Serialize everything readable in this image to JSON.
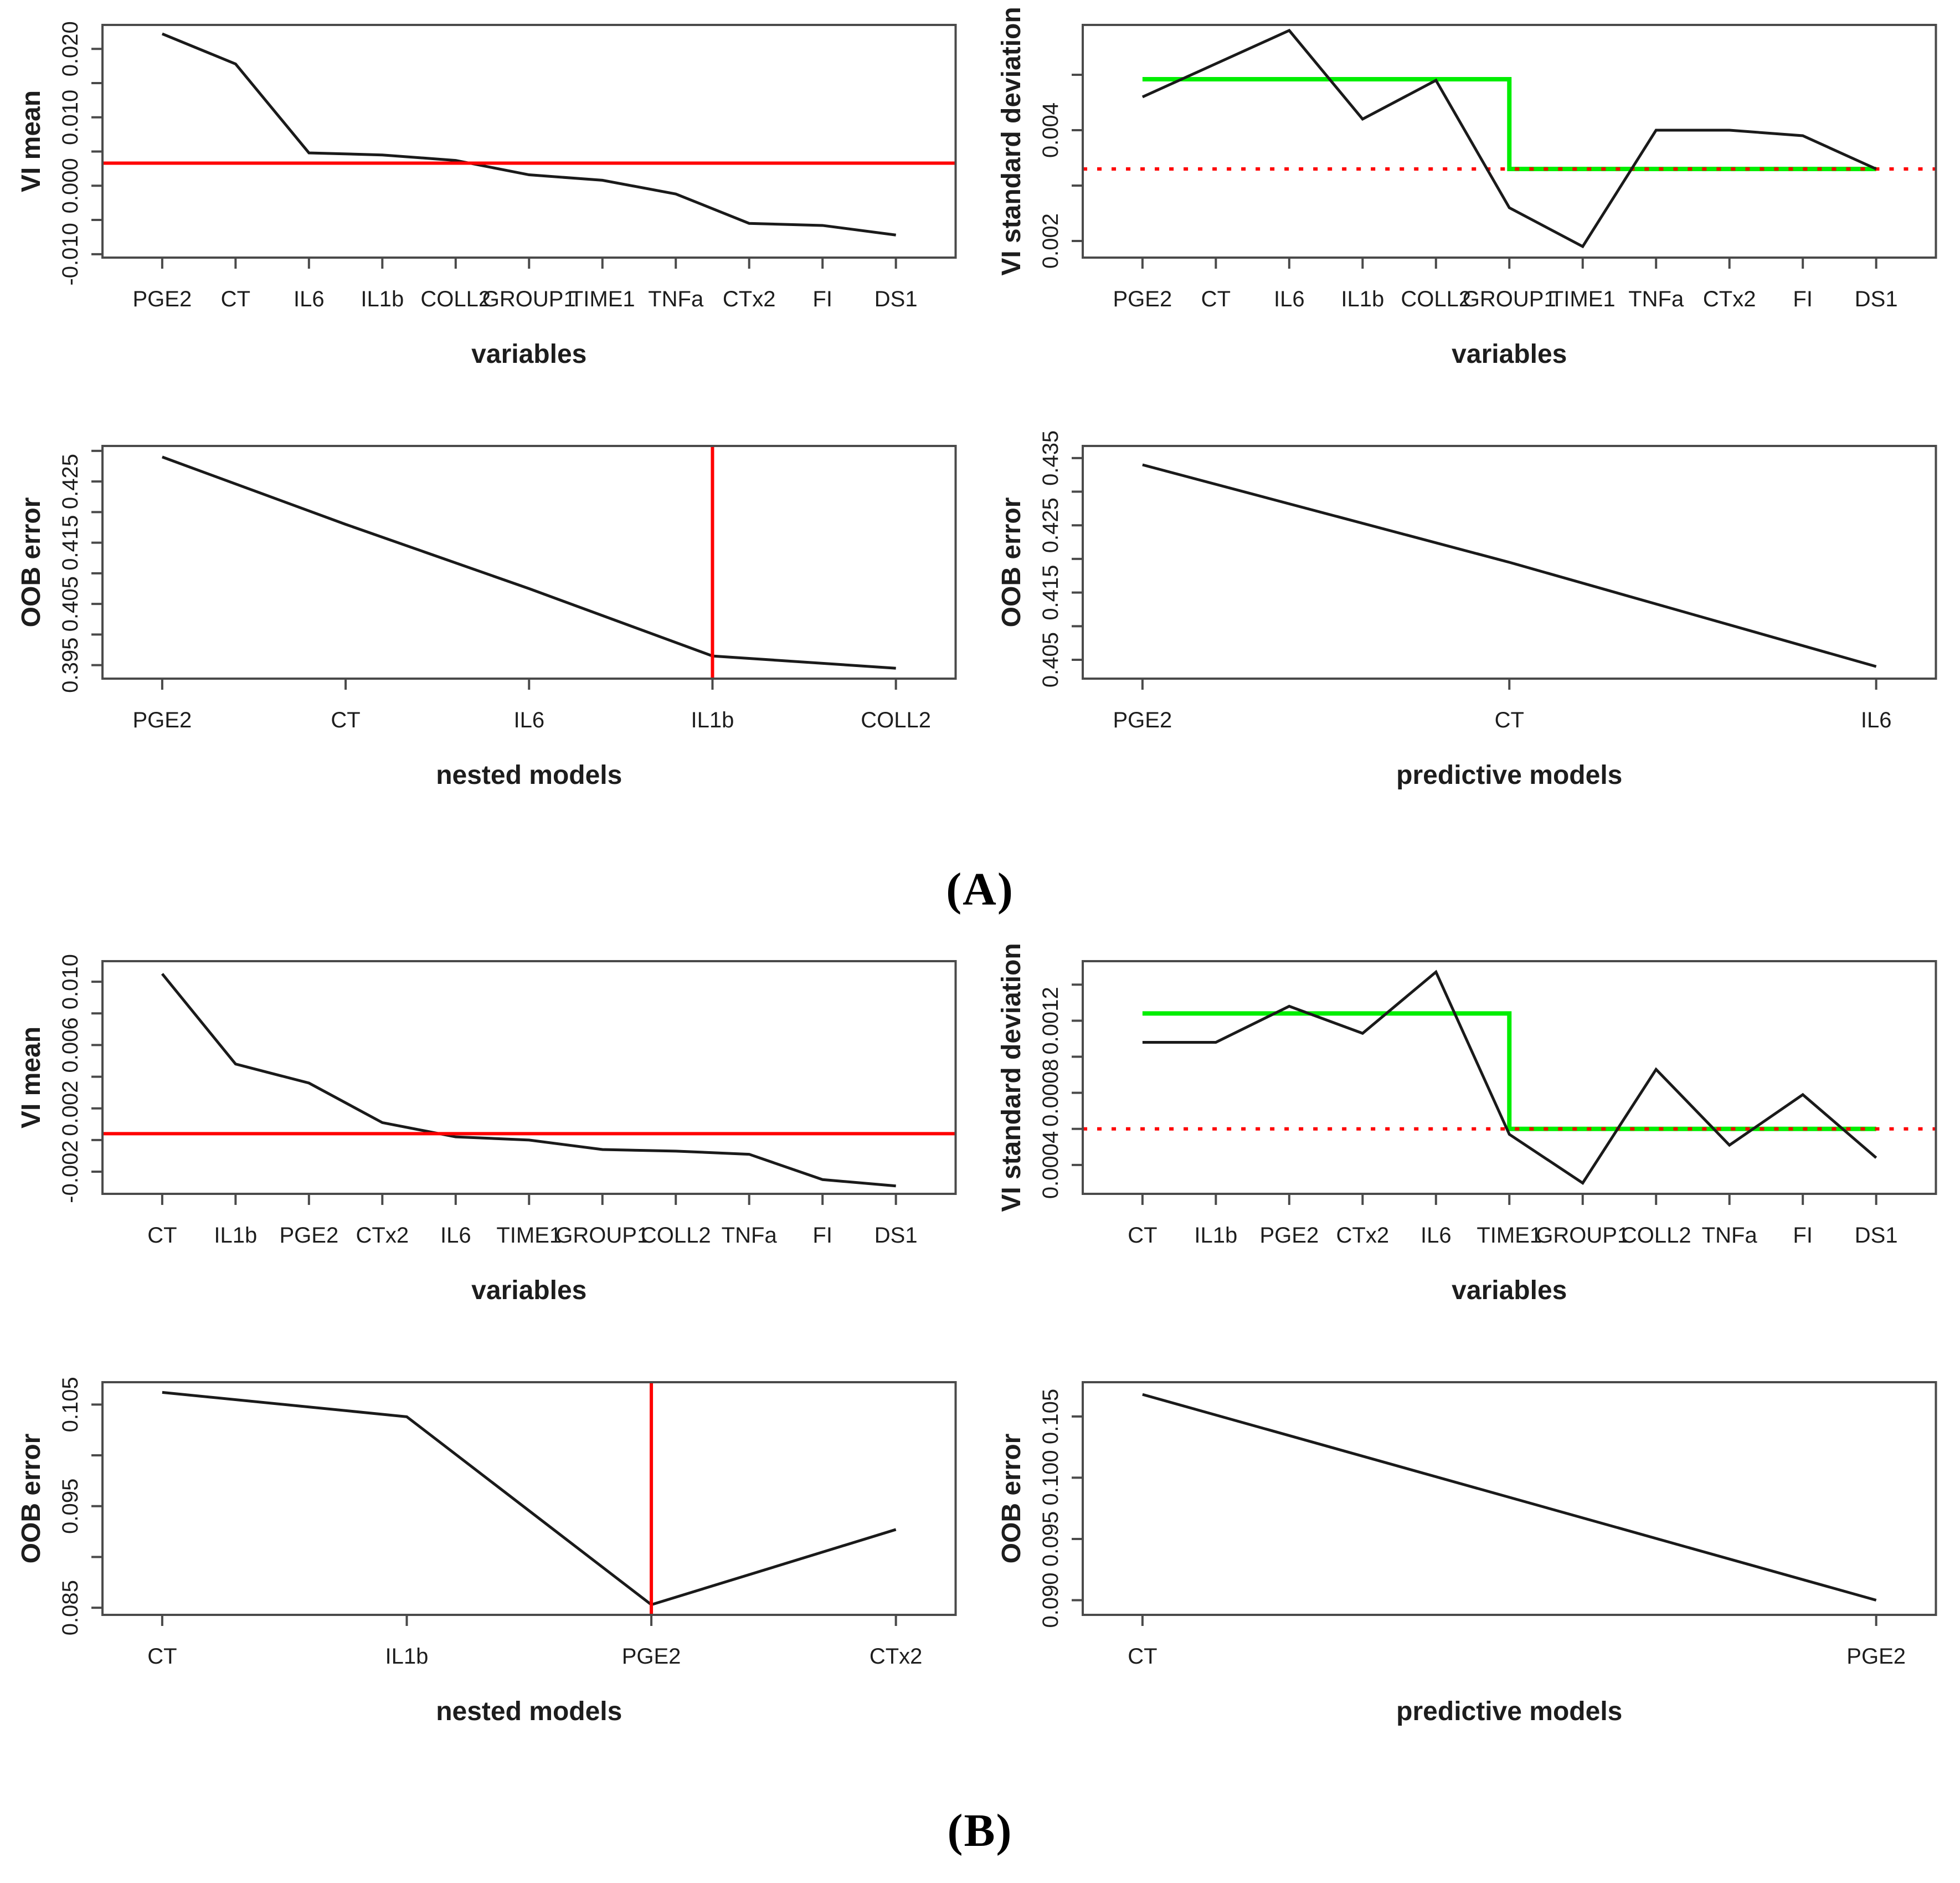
{
  "page": {
    "background": "#ffffff"
  },
  "colors": {
    "black_line": "#1a1a1a",
    "axis": "#4a4a4a",
    "text": "#1d1d1d",
    "red": "#ff0000",
    "green": "#00ee00"
  },
  "panels": {
    "a_label": "(A)",
    "b_label": "(B)"
  },
  "chart_data": [
    {
      "panel": "A",
      "slot": "top-left",
      "type": "line",
      "xlabel": "variables",
      "ylabel": "VI mean",
      "categories": [
        "PGE2",
        "CT",
        "IL6",
        "IL1b",
        "COLL2",
        "GROUP1",
        "TIME1",
        "TNFa",
        "CTx2",
        "FI",
        "DS1"
      ],
      "values": [
        0.0222,
        0.0178,
        0.0048,
        0.0045,
        0.0037,
        0.0016,
        0.0008,
        -0.0012,
        -0.0055,
        -0.0058,
        -0.0072
      ],
      "ylim": [
        -0.0105,
        0.0235
      ],
      "yticks": [
        {
          "v": 0.02,
          "label": "0.020"
        },
        {
          "v": 0.015
        },
        {
          "v": 0.01,
          "label": "0.010"
        },
        {
          "v": 0.005
        },
        {
          "v": 0.0,
          "label": "0.000"
        },
        {
          "v": -0.005
        },
        {
          "v": -0.01,
          "label": "-0.010"
        }
      ],
      "red_hline": 0.0033,
      "grid": false,
      "legend": "none"
    },
    {
      "panel": "A",
      "slot": "top-right",
      "type": "line",
      "xlabel": "variables",
      "ylabel": "VI standard deviation",
      "categories": [
        "PGE2",
        "CT",
        "IL6",
        "IL1b",
        "COLL2",
        "GROUP1",
        "TIME1",
        "TNFa",
        "CTx2",
        "FI",
        "DS1"
      ],
      "values": [
        0.0046,
        0.0052,
        0.0058,
        0.0042,
        0.0049,
        0.0026,
        0.0019,
        0.004,
        0.004,
        0.0039,
        0.0033
      ],
      "ylim": [
        0.0017,
        0.0059
      ],
      "yticks": [
        {
          "v": 0.002,
          "label": "0.002"
        },
        {
          "v": 0.003
        },
        {
          "v": 0.004,
          "label": "0.004"
        },
        {
          "v": 0.005
        }
      ],
      "red_dotted_hline": 0.0033,
      "green_step": {
        "high": 0.00492,
        "low": 0.0033,
        "drop_index": 5
      },
      "grid": false,
      "legend": "none"
    },
    {
      "panel": "A",
      "slot": "bottom-left",
      "type": "line",
      "xlabel": "nested models",
      "ylabel": "OOB error",
      "categories": [
        "PGE2",
        "CT",
        "IL6",
        "IL1b",
        "COLL2"
      ],
      "values": [
        0.429,
        0.418,
        0.4075,
        0.3965,
        0.3945
      ],
      "ylim": [
        0.3928,
        0.4308
      ],
      "yticks": [
        {
          "v": 0.43
        },
        {
          "v": 0.425,
          "label": "0.425"
        },
        {
          "v": 0.42
        },
        {
          "v": 0.415,
          "label": "0.415"
        },
        {
          "v": 0.41
        },
        {
          "v": 0.405,
          "label": "0.405"
        },
        {
          "v": 0.4
        },
        {
          "v": 0.395,
          "label": "0.395"
        }
      ],
      "red_vline_index": 3,
      "grid": false,
      "legend": "none"
    },
    {
      "panel": "A",
      "slot": "bottom-right",
      "type": "line",
      "xlabel": "predictive models",
      "ylabel": "OOB error",
      "categories": [
        "PGE2",
        "CT",
        "IL6"
      ],
      "values": [
        0.434,
        0.4195,
        0.404
      ],
      "ylim": [
        0.4022,
        0.4368
      ],
      "yticks": [
        {
          "v": 0.435,
          "label": "0.435"
        },
        {
          "v": 0.43
        },
        {
          "v": 0.425,
          "label": "0.425"
        },
        {
          "v": 0.42
        },
        {
          "v": 0.415,
          "label": "0.415"
        },
        {
          "v": 0.41
        },
        {
          "v": 0.405,
          "label": "0.405"
        }
      ],
      "grid": false,
      "legend": "none"
    },
    {
      "panel": "B",
      "slot": "top-left",
      "type": "line",
      "xlabel": "variables",
      "ylabel": "VI mean",
      "categories": [
        "CT",
        "IL1b",
        "PGE2",
        "CTx2",
        "IL6",
        "TIME1",
        "GROUP1",
        "COLL2",
        "TNFa",
        "FI",
        "DS1"
      ],
      "values": [
        0.0105,
        0.0048,
        0.0036,
        0.0011,
        0.0002,
        0.0,
        -0.0006,
        -0.0007,
        -0.0009,
        -0.0025,
        -0.0029
      ],
      "ylim": [
        -0.0034,
        0.0113
      ],
      "yticks": [
        {
          "v": 0.01,
          "label": "0.010"
        },
        {
          "v": 0.008
        },
        {
          "v": 0.006,
          "label": "0.006"
        },
        {
          "v": 0.004
        },
        {
          "v": 0.002,
          "label": "0.002"
        },
        {
          "v": 0.0
        },
        {
          "v": -0.002,
          "label": "-0.002"
        }
      ],
      "red_hline": 0.0004,
      "grid": false,
      "legend": "none"
    },
    {
      "panel": "B",
      "slot": "top-right",
      "type": "line",
      "xlabel": "variables",
      "ylabel": "VI standard deviation",
      "categories": [
        "CT",
        "IL1b",
        "PGE2",
        "CTx2",
        "IL6",
        "TIME1",
        "GROUP1",
        "COLL2",
        "TNFa",
        "FI",
        "DS1"
      ],
      "values": [
        0.00108,
        0.00108,
        0.00128,
        0.00113,
        0.00147,
        0.00057,
        0.0003,
        0.00093,
        0.00051,
        0.00079,
        0.00044
      ],
      "ylim": [
        0.00024,
        0.00153
      ],
      "yticks": [
        {
          "v": 0.0004,
          "label": "0.0004"
        },
        {
          "v": 0.0006
        },
        {
          "v": 0.0008,
          "label": "0.0008"
        },
        {
          "v": 0.001
        },
        {
          "v": 0.0012,
          "label": "0.0012"
        },
        {
          "v": 0.0014
        }
      ],
      "red_dotted_hline": 0.0006,
      "green_step": {
        "high": 0.00124,
        "low": 0.0006,
        "drop_index": 5
      },
      "grid": false,
      "legend": "none"
    },
    {
      "panel": "B",
      "slot": "bottom-left",
      "type": "line",
      "xlabel": "nested models",
      "ylabel": "OOB error",
      "categories": [
        "CT",
        "IL1b",
        "PGE2",
        "CTx2"
      ],
      "values": [
        0.1062,
        0.1038,
        0.0853,
        0.0927
      ],
      "ylim": [
        0.0843,
        0.1072
      ],
      "yticks": [
        {
          "v": 0.105,
          "label": "0.105"
        },
        {
          "v": 0.1
        },
        {
          "v": 0.095,
          "label": "0.095"
        },
        {
          "v": 0.09
        },
        {
          "v": 0.085,
          "label": "0.085"
        }
      ],
      "red_vline_index": 2,
      "grid": false,
      "legend": "none"
    },
    {
      "panel": "B",
      "slot": "bottom-right",
      "type": "line",
      "xlabel": "predictive models",
      "ylabel": "OOB error",
      "categories": [
        "CT",
        "PGE2"
      ],
      "values": [
        0.1068,
        0.09
      ],
      "ylim": [
        0.0888,
        0.1078
      ],
      "yticks": [
        {
          "v": 0.105,
          "label": "0.105"
        },
        {
          "v": 0.1,
          "label": "0.100"
        },
        {
          "v": 0.095,
          "label": "0.095"
        },
        {
          "v": 0.09,
          "label": "0.090"
        }
      ],
      "grid": false,
      "legend": "none"
    }
  ]
}
